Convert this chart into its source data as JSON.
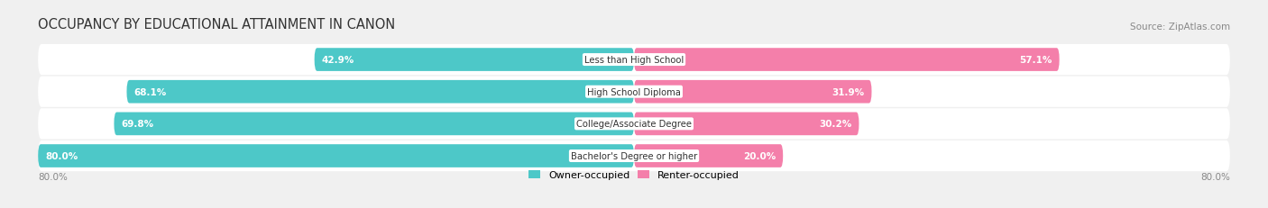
{
  "title": "OCCUPANCY BY EDUCATIONAL ATTAINMENT IN CANON",
  "source": "Source: ZipAtlas.com",
  "categories": [
    "Less than High School",
    "High School Diploma",
    "College/Associate Degree",
    "Bachelor's Degree or higher"
  ],
  "owner_values": [
    42.9,
    68.1,
    69.8,
    80.0
  ],
  "renter_values": [
    57.1,
    31.9,
    30.2,
    20.0
  ],
  "owner_color": "#4dc8c8",
  "renter_color": "#f47faa",
  "owner_label": "Owner-occupied",
  "renter_label": "Renter-occupied",
  "background_color": "#f0f0f0",
  "bar_background": "#e0e0e0",
  "row_background": "#ffffff",
  "axis_label_left": "80.0%",
  "axis_label_right": "80.0%",
  "title_fontsize": 10.5,
  "source_fontsize": 7.5,
  "bar_height": 0.72,
  "max_val": 80.0
}
